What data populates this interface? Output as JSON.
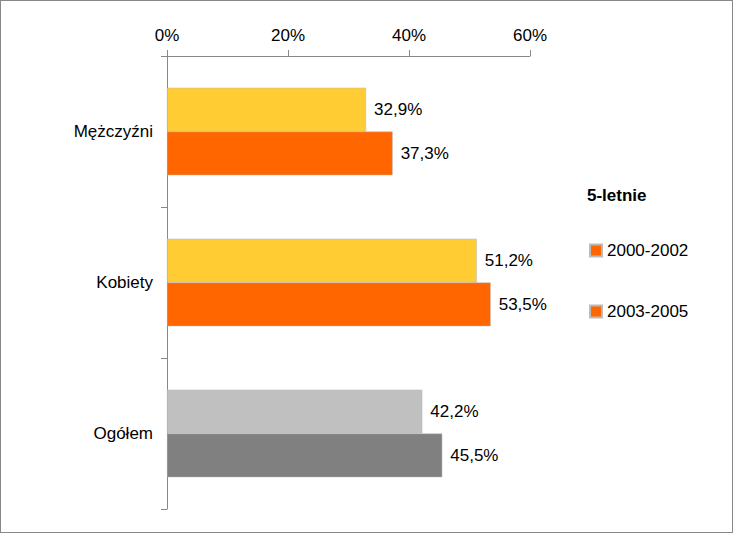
{
  "chart_data": {
    "type": "bar",
    "orientation": "horizontal",
    "categories": [
      "Mężczyźni",
      "Kobiety",
      "Ogółem"
    ],
    "legend_title": "5-letnie",
    "series": [
      {
        "name": "2000-2002",
        "color": "#FF6600",
        "colors": [
          "#FFCC33",
          "#FFCC33",
          "#C0C0C0"
        ],
        "values": [
          32.9,
          51.2,
          42.2
        ],
        "value_labels": [
          "32,9%",
          "51,2%",
          "42,2%"
        ]
      },
      {
        "name": "2003-2005",
        "color": "#FF6600",
        "colors": [
          "#FF6600",
          "#FF6600",
          "#808080"
        ],
        "values": [
          37.3,
          53.5,
          45.5
        ],
        "value_labels": [
          "37,3%",
          "53,5%",
          "45,5%"
        ]
      }
    ],
    "xlim": [
      0,
      60
    ],
    "xticks": [
      {
        "value": 0,
        "label": "0%"
      },
      {
        "value": 20,
        "label": "20%"
      },
      {
        "value": 40,
        "label": "40%"
      },
      {
        "value": 60,
        "label": "60%"
      }
    ],
    "grid": false,
    "data_labels": true,
    "legend": "right"
  }
}
